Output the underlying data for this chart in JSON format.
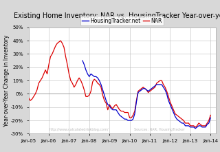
{
  "title": "Existing Home Inventory: NAR vs. HousingTracker Year-over-year",
  "ylabel": "Year-over-Year Change in Inventory",
  "ylim": [
    -0.3,
    0.5
  ],
  "yticks": [
    -0.3,
    -0.2,
    -0.1,
    0.0,
    0.1,
    0.2,
    0.3,
    0.4,
    0.5
  ],
  "ytick_labels": [
    "-30%",
    "-20%",
    "-10%",
    "0%",
    "10%",
    "20%",
    "30%",
    "40%",
    "50%"
  ],
  "xtick_labels": [
    "Jan-05",
    "Jan-06",
    "Jan-07",
    "Jan-08",
    "Jan-09",
    "Jan-10",
    "Jan-11",
    "Jan-12",
    "Jan-13",
    "Jan-14"
  ],
  "background_color": "#d8d8d8",
  "plot_bg": "#ffffff",
  "line_ht_color": "#0000cc",
  "line_nar_color": "#dd0000",
  "legend_ht": "HousingTracker.net",
  "legend_nar": "NAR",
  "watermark1": "http://www.calculatedriskblog.com/",
  "watermark2": "Sources: NAR, HousingTracker",
  "title_fontsize": 7,
  "label_fontsize": 5.5,
  "tick_fontsize": 5,
  "legend_fontsize": 5.5,
  "nar_data": [
    [
      2005,
      1,
      -0.03
    ],
    [
      2005,
      2,
      -0.05
    ],
    [
      2005,
      3,
      -0.04
    ],
    [
      2005,
      4,
      -0.02
    ],
    [
      2005,
      5,
      0.0
    ],
    [
      2005,
      6,
      0.03
    ],
    [
      2005,
      7,
      0.08
    ],
    [
      2005,
      8,
      0.1
    ],
    [
      2005,
      9,
      0.12
    ],
    [
      2005,
      10,
      0.15
    ],
    [
      2005,
      11,
      0.18
    ],
    [
      2005,
      12,
      0.15
    ],
    [
      2006,
      1,
      0.22
    ],
    [
      2006,
      2,
      0.28
    ],
    [
      2006,
      3,
      0.3
    ],
    [
      2006,
      4,
      0.33
    ],
    [
      2006,
      5,
      0.36
    ],
    [
      2006,
      6,
      0.38
    ],
    [
      2006,
      7,
      0.39
    ],
    [
      2006,
      8,
      0.4
    ],
    [
      2006,
      9,
      0.38
    ],
    [
      2006,
      10,
      0.35
    ],
    [
      2006,
      11,
      0.28
    ],
    [
      2006,
      12,
      0.22
    ],
    [
      2007,
      1,
      0.15
    ],
    [
      2007,
      2,
      0.1
    ],
    [
      2007,
      3,
      0.08
    ],
    [
      2007,
      4,
      0.05
    ],
    [
      2007,
      5,
      0.07
    ],
    [
      2007,
      6,
      0.1
    ],
    [
      2007,
      7,
      0.12
    ],
    [
      2007,
      8,
      0.1
    ],
    [
      2007,
      9,
      0.07
    ],
    [
      2007,
      10,
      0.03
    ],
    [
      2007,
      11,
      -0.02
    ],
    [
      2007,
      12,
      -0.02
    ],
    [
      2008,
      1,
      -0.01
    ],
    [
      2008,
      2,
      0.02
    ],
    [
      2008,
      3,
      0.09
    ],
    [
      2008,
      4,
      0.11
    ],
    [
      2008,
      5,
      0.1
    ],
    [
      2008,
      6,
      0.08
    ],
    [
      2008,
      7,
      0.07
    ],
    [
      2008,
      8,
      0.05
    ],
    [
      2008,
      9,
      -0.01
    ],
    [
      2008,
      10,
      -0.05
    ],
    [
      2008,
      11,
      -0.07
    ],
    [
      2008,
      12,
      -0.12
    ],
    [
      2009,
      1,
      -0.08
    ],
    [
      2009,
      2,
      -0.1
    ],
    [
      2009,
      3,
      -0.11
    ],
    [
      2009,
      4,
      -0.09
    ],
    [
      2009,
      5,
      -0.08
    ],
    [
      2009,
      6,
      -0.1
    ],
    [
      2009,
      7,
      -0.12
    ],
    [
      2009,
      8,
      -0.13
    ],
    [
      2009,
      9,
      -0.13
    ],
    [
      2009,
      10,
      -0.14
    ],
    [
      2009,
      11,
      -0.14
    ],
    [
      2009,
      12,
      -0.14
    ],
    [
      2010,
      1,
      -0.18
    ],
    [
      2010,
      2,
      -0.18
    ],
    [
      2010,
      3,
      -0.16
    ],
    [
      2010,
      4,
      -0.13
    ],
    [
      2010,
      5,
      -0.05
    ],
    [
      2010,
      6,
      0.02
    ],
    [
      2010,
      7,
      0.03
    ],
    [
      2010,
      8,
      0.04
    ],
    [
      2010,
      9,
      0.05
    ],
    [
      2010,
      10,
      0.04
    ],
    [
      2010,
      11,
      0.03
    ],
    [
      2010,
      12,
      0.01
    ],
    [
      2011,
      1,
      0.02
    ],
    [
      2011,
      2,
      0.03
    ],
    [
      2011,
      3,
      0.04
    ],
    [
      2011,
      4,
      0.05
    ],
    [
      2011,
      5,
      0.08
    ],
    [
      2011,
      6,
      0.09
    ],
    [
      2011,
      7,
      0.1
    ],
    [
      2011,
      8,
      0.1
    ],
    [
      2011,
      9,
      0.07
    ],
    [
      2011,
      10,
      0.05
    ],
    [
      2011,
      11,
      0.02
    ],
    [
      2011,
      12,
      -0.02
    ],
    [
      2012,
      1,
      -0.06
    ],
    [
      2012,
      2,
      -0.09
    ],
    [
      2012,
      3,
      -0.12
    ],
    [
      2012,
      4,
      -0.15
    ],
    [
      2012,
      5,
      -0.16
    ],
    [
      2012,
      6,
      -0.17
    ],
    [
      2012,
      7,
      -0.18
    ],
    [
      2012,
      8,
      -0.19
    ],
    [
      2012,
      9,
      -0.2
    ],
    [
      2012,
      10,
      -0.22
    ],
    [
      2012,
      11,
      -0.22
    ],
    [
      2012,
      12,
      -0.22
    ],
    [
      2013,
      1,
      -0.24
    ],
    [
      2013,
      2,
      -0.24
    ],
    [
      2013,
      3,
      -0.24
    ],
    [
      2013,
      4,
      -0.25
    ],
    [
      2013,
      5,
      -0.24
    ],
    [
      2013,
      6,
      -0.22
    ],
    [
      2013,
      7,
      -0.23
    ],
    [
      2013,
      8,
      -0.24
    ],
    [
      2013,
      9,
      -0.24
    ],
    [
      2013,
      10,
      -0.24
    ],
    [
      2013,
      11,
      -0.22
    ],
    [
      2013,
      12,
      -0.2
    ],
    [
      2014,
      1,
      -0.16
    ]
  ],
  "ht_data": [
    [
      2007,
      9,
      0.25
    ],
    [
      2007,
      10,
      0.22
    ],
    [
      2007,
      11,
      0.18
    ],
    [
      2007,
      12,
      0.15
    ],
    [
      2008,
      1,
      0.13
    ],
    [
      2008,
      2,
      0.15
    ],
    [
      2008,
      3,
      0.14
    ],
    [
      2008,
      4,
      0.13
    ],
    [
      2008,
      5,
      0.13
    ],
    [
      2008,
      6,
      0.12
    ],
    [
      2008,
      7,
      0.1
    ],
    [
      2008,
      8,
      0.07
    ],
    [
      2008,
      9,
      0.03
    ],
    [
      2008,
      10,
      -0.01
    ],
    [
      2008,
      11,
      -0.05
    ],
    [
      2008,
      12,
      -0.08
    ],
    [
      2009,
      1,
      -0.09
    ],
    [
      2009,
      2,
      -0.11
    ],
    [
      2009,
      3,
      -0.12
    ],
    [
      2009,
      4,
      -0.12
    ],
    [
      2009,
      5,
      -0.12
    ],
    [
      2009,
      6,
      -0.14
    ],
    [
      2009,
      7,
      -0.16
    ],
    [
      2009,
      8,
      -0.17
    ],
    [
      2009,
      9,
      -0.18
    ],
    [
      2009,
      10,
      -0.19
    ],
    [
      2009,
      11,
      -0.19
    ],
    [
      2009,
      12,
      -0.2
    ],
    [
      2010,
      1,
      -0.2
    ],
    [
      2010,
      2,
      -0.2
    ],
    [
      2010,
      3,
      -0.19
    ],
    [
      2010,
      4,
      -0.15
    ],
    [
      2010,
      5,
      -0.06
    ],
    [
      2010,
      6,
      0.01
    ],
    [
      2010,
      7,
      0.02
    ],
    [
      2010,
      8,
      0.03
    ],
    [
      2010,
      9,
      0.04
    ],
    [
      2010,
      10,
      0.04
    ],
    [
      2010,
      11,
      0.03
    ],
    [
      2010,
      12,
      0.02
    ],
    [
      2011,
      1,
      0.03
    ],
    [
      2011,
      2,
      0.04
    ],
    [
      2011,
      3,
      0.05
    ],
    [
      2011,
      4,
      0.06
    ],
    [
      2011,
      5,
      0.07
    ],
    [
      2011,
      6,
      0.07
    ],
    [
      2011,
      7,
      0.07
    ],
    [
      2011,
      8,
      0.07
    ],
    [
      2011,
      9,
      0.05
    ],
    [
      2011,
      10,
      0.03
    ],
    [
      2011,
      11,
      0.0
    ],
    [
      2011,
      12,
      -0.05
    ],
    [
      2012,
      1,
      -0.08
    ],
    [
      2012,
      2,
      -0.11
    ],
    [
      2012,
      3,
      -0.14
    ],
    [
      2012,
      4,
      -0.17
    ],
    [
      2012,
      5,
      -0.19
    ],
    [
      2012,
      6,
      -0.2
    ],
    [
      2012,
      7,
      -0.21
    ],
    [
      2012,
      8,
      -0.22
    ],
    [
      2012,
      9,
      -0.22
    ],
    [
      2012,
      10,
      -0.24
    ],
    [
      2012,
      11,
      -0.24
    ],
    [
      2012,
      12,
      -0.24
    ],
    [
      2013,
      1,
      -0.25
    ],
    [
      2013,
      2,
      -0.25
    ],
    [
      2013,
      3,
      -0.25
    ],
    [
      2013,
      4,
      -0.26
    ],
    [
      2013,
      5,
      -0.25
    ],
    [
      2013,
      6,
      -0.24
    ],
    [
      2013,
      7,
      -0.24
    ],
    [
      2013,
      8,
      -0.25
    ],
    [
      2013,
      9,
      -0.25
    ],
    [
      2013,
      10,
      -0.25
    ],
    [
      2013,
      11,
      -0.23
    ],
    [
      2013,
      12,
      -0.22
    ],
    [
      2014,
      1,
      -0.18
    ]
  ]
}
